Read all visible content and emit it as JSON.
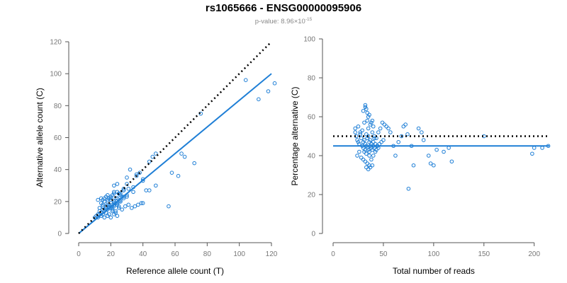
{
  "title": "rs1065666 - ENSG00000095906",
  "subtitle": {
    "prefix": "p-value: 8.96×10",
    "exponent": "-15"
  },
  "colors": {
    "accent": "#1f7fd6",
    "reference_line": "#000000",
    "axis": "#555555",
    "tick": "#777777"
  },
  "chart_data": [
    {
      "type": "scatter",
      "title": "",
      "xlabel": "Reference allele count (T)",
      "ylabel": "Alternative allele count (C)",
      "xlim": [
        0,
        120
      ],
      "ylim": [
        0,
        120
      ],
      "xticks": [
        0,
        20,
        40,
        60,
        80,
        100,
        120
      ],
      "yticks": [
        0,
        20,
        40,
        60,
        80,
        100,
        120
      ],
      "grid": false,
      "series": [
        {
          "role": "points",
          "x": [
            10,
            11,
            12,
            13,
            14,
            15,
            16,
            17,
            18,
            19,
            20,
            21,
            22,
            23,
            24,
            12,
            13,
            14,
            15,
            16,
            17,
            18,
            19,
            20,
            21,
            22,
            23,
            24,
            25,
            13,
            15,
            17,
            19,
            21,
            23,
            25,
            14,
            16,
            18,
            20,
            22,
            24,
            26,
            15,
            17,
            19,
            21,
            23,
            25,
            27,
            16,
            18,
            20,
            22,
            24,
            26,
            28,
            18,
            20,
            22,
            24,
            26,
            28,
            30,
            20,
            22,
            24,
            26,
            28,
            30,
            22,
            25,
            28,
            31,
            34,
            12,
            14,
            16,
            18,
            20,
            22,
            15,
            17,
            19,
            21,
            23,
            25,
            27,
            29,
            31,
            33,
            35,
            37,
            39,
            32,
            38,
            44,
            22,
            24,
            28,
            30,
            34,
            36,
            40,
            42,
            26,
            30,
            36,
            40,
            48,
            58,
            64,
            66,
            72,
            76,
            56,
            62,
            40,
            44,
            46,
            48,
            104,
            112,
            118,
            122
          ],
          "y": [
            10,
            11,
            10,
            12,
            11,
            12,
            10,
            13,
            11,
            12,
            10,
            14,
            12,
            13,
            11,
            12,
            14,
            13,
            15,
            14,
            16,
            15,
            17,
            16,
            18,
            17,
            19,
            18,
            20,
            16,
            17,
            15,
            18,
            16,
            19,
            17,
            19,
            20,
            18,
            21,
            19,
            22,
            20,
            21,
            23,
            22,
            24,
            22,
            25,
            23,
            22,
            24,
            23,
            25,
            26,
            24,
            27,
            20,
            21,
            20,
            22,
            21,
            23,
            24,
            17,
            18,
            19,
            20,
            22,
            23,
            26,
            25,
            27,
            28,
            26,
            21,
            22,
            20,
            21,
            22,
            20,
            18,
            17,
            16,
            15,
            14,
            16,
            15,
            17,
            18,
            16,
            17,
            18,
            19,
            40,
            38,
            45,
            30,
            31,
            28,
            31,
            29,
            36,
            33,
            27,
            25,
            35,
            37,
            34,
            50,
            38,
            50,
            48,
            44,
            75,
            17,
            36,
            19,
            27,
            48,
            30,
            96,
            84,
            89,
            94
          ]
        },
        {
          "role": "fit-line",
          "x": [
            0,
            120
          ],
          "y": [
            0,
            100
          ]
        },
        {
          "role": "reference-line",
          "x": [
            0,
            120
          ],
          "y": [
            0,
            120
          ]
        }
      ]
    },
    {
      "type": "scatter",
      "title": "",
      "xlabel": "Total number of reads",
      "ylabel": "Percentage alternative (C)",
      "xlim": [
        0,
        215
      ],
      "ylim": [
        0,
        100
      ],
      "xticks": [
        0,
        50,
        100,
        150,
        200
      ],
      "yticks": [
        0,
        20,
        40,
        60,
        80,
        100
      ],
      "grid": false,
      "series": [
        {
          "role": "points",
          "x": [
            22,
            23,
            24,
            25,
            26,
            27,
            28,
            29,
            30,
            30,
            31,
            31,
            32,
            32,
            33,
            33,
            34,
            34,
            35,
            35,
            36,
            36,
            37,
            37,
            38,
            38,
            39,
            39,
            40,
            40,
            41,
            41,
            42,
            43,
            44,
            45,
            22,
            24,
            26,
            28,
            30,
            32,
            34,
            36,
            38,
            40,
            42,
            44,
            46,
            48,
            50,
            25,
            27,
            29,
            31,
            33,
            35,
            37,
            39,
            41,
            43,
            45,
            30,
            32,
            34,
            36,
            38,
            40,
            33,
            35,
            37,
            39,
            32,
            33,
            34,
            35,
            36,
            47,
            49,
            51,
            53,
            55,
            57,
            60,
            62,
            65,
            68,
            70,
            72,
            74,
            75,
            78,
            80,
            85,
            88,
            90,
            95,
            97,
            100,
            103,
            110,
            115,
            118,
            150,
            198,
            200,
            208,
            214
          ],
          "y": [
            52,
            50,
            48,
            47,
            46,
            51,
            49,
            45,
            44,
            47,
            42,
            48,
            43,
            46,
            41,
            45,
            44,
            49,
            43,
            50,
            42,
            47,
            45,
            48,
            44,
            46,
            43,
            52,
            45,
            47,
            44,
            49,
            46,
            43,
            45,
            44,
            54,
            40,
            42,
            39,
            38,
            37,
            36,
            35,
            38,
            40,
            42,
            45,
            46,
            47,
            48,
            55,
            52,
            53,
            57,
            51,
            54,
            56,
            58,
            50,
            49,
            52,
            63,
            65,
            62,
            61,
            57,
            55,
            34,
            33,
            34,
            35,
            66,
            64,
            58,
            60,
            40,
            54,
            57,
            56,
            55,
            54,
            52,
            45,
            40,
            47,
            50,
            55,
            56,
            51,
            23,
            45,
            35,
            54,
            52,
            48,
            40,
            36,
            35,
            43,
            42,
            44,
            37,
            50,
            41,
            44,
            44,
            45
          ]
        },
        {
          "role": "fit-line",
          "x": [
            0,
            215
          ],
          "y": [
            45,
            45
          ]
        },
        {
          "role": "reference-line",
          "x": [
            0,
            215
          ],
          "y": [
            50,
            50
          ]
        }
      ]
    }
  ]
}
